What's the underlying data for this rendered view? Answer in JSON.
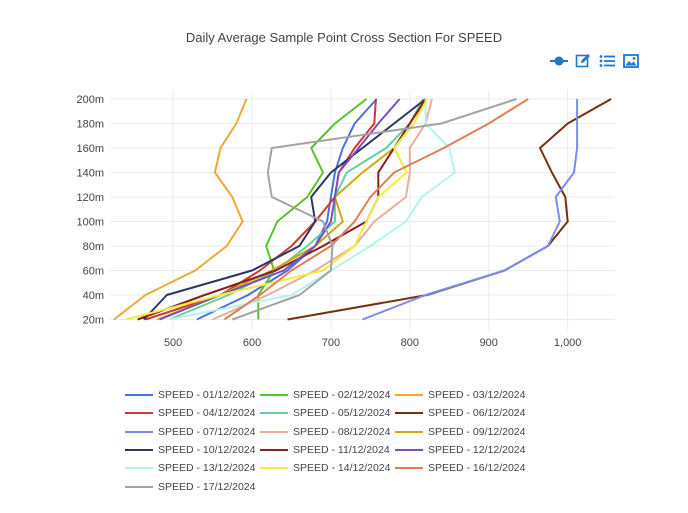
{
  "chart_data": {
    "type": "line",
    "title": "Daily Average Sample Point Cross Section For SPEED",
    "xlabel": "",
    "ylabel": "",
    "xlim": [
      420,
      1060
    ],
    "x_ticks": [
      500,
      600,
      700,
      800,
      900,
      1000
    ],
    "x_tick_labels": [
      "500",
      "600",
      "700",
      "800",
      "900",
      "1,000"
    ],
    "y_categories": [
      "20m",
      "40m",
      "60m",
      "80m",
      "100m",
      "120m",
      "140m",
      "160m",
      "180m",
      "200m"
    ],
    "grid": true,
    "legend_position": "bottom",
    "series": [
      {
        "name": "SPEED - 01/12/2024",
        "color": "#4a6fe3",
        "x": [
          530,
          595,
          645,
          680,
          695,
          700,
          705,
          715,
          730,
          758
        ]
      },
      {
        "name": "SPEED - 02/12/2024",
        "color": "#57c22b",
        "x": [
          608,
          608,
          628,
          618,
          632,
          670,
          690,
          675,
          705,
          745
        ]
      },
      {
        "name": "SPEED - 03/12/2024",
        "color": "#f2a735",
        "x": [
          425,
          465,
          528,
          568,
          588,
          575,
          553,
          560,
          580,
          593
        ]
      },
      {
        "name": "SPEED - 04/12/2024",
        "color": "#d33a2f",
        "x": [
          465,
          560,
          610,
          650,
          680,
          705,
          710,
          730,
          755,
          757
        ]
      },
      {
        "name": "SPEED - 05/12/2024",
        "color": "#5fd29b",
        "x": [
          495,
          570,
          630,
          670,
          705,
          705,
          720,
          770,
          800,
          817
        ]
      },
      {
        "name": "SPEED - 06/12/2024",
        "color": "#7a2e10",
        "x": [
          645,
          822,
          920,
          975,
          1000,
          997,
          980,
          965,
          1000,
          1055
        ]
      },
      {
        "name": "SPEED - 07/12/2024",
        "color": "#7b8cf0",
        "x": [
          740,
          820,
          920,
          975,
          990,
          985,
          1008,
          1012,
          1012,
          1012
        ]
      },
      {
        "name": "SPEED - 08/12/2024",
        "color": "#e3b199",
        "x": [
          550,
          620,
          680,
          730,
          755,
          795,
          800,
          800,
          820,
          828
        ]
      },
      {
        "name": "SPEED - 09/12/2024",
        "color": "#d4a60c",
        "x": [
          480,
          560,
          625,
          680,
          715,
          705,
          740,
          780,
          805,
          820
        ]
      },
      {
        "name": "SPEED - 10/12/2024",
        "color": "#2c3565",
        "x": [
          463,
          492,
          600,
          660,
          680,
          675,
          700,
          740,
          780,
          820
        ]
      },
      {
        "name": "SPEED - 11/12/2024",
        "color": "#8b1e1e",
        "x": [
          455,
          540,
          630,
          690,
          745,
          760,
          760,
          780,
          800,
          820
        ]
      },
      {
        "name": "SPEED - 12/12/2024",
        "color": "#7a4fbf",
        "x": [
          483,
          560,
          640,
          680,
          700,
          705,
          710,
          735,
          760,
          787
        ]
      },
      {
        "name": "SPEED - 13/12/2024",
        "color": "#b5f3f1",
        "x": [
          495,
          650,
          700,
          750,
          795,
          815,
          857,
          850,
          820,
          820
        ]
      },
      {
        "name": "SPEED - 14/12/2024",
        "color": "#f1ed3c",
        "x": [
          440,
          560,
          690,
          730,
          745,
          760,
          796,
          780,
          805,
          822
        ]
      },
      {
        "name": "SPEED - 16/12/2024",
        "color": "#e07f52",
        "x": [
          565,
          610,
          650,
          700,
          730,
          750,
          780,
          843,
          900,
          950
        ]
      },
      {
        "name": "SPEED - 17/12/2024",
        "color": "#a3a3a3",
        "x": [
          575,
          660,
          700,
          702,
          690,
          625,
          620,
          625,
          840,
          935
        ]
      }
    ]
  },
  "toolbar": {
    "icons": [
      "plotly-logo-icon",
      "edit-chart-icon",
      "show-data-icon",
      "image-download-icon"
    ],
    "accent_color": "#1f77d0"
  }
}
